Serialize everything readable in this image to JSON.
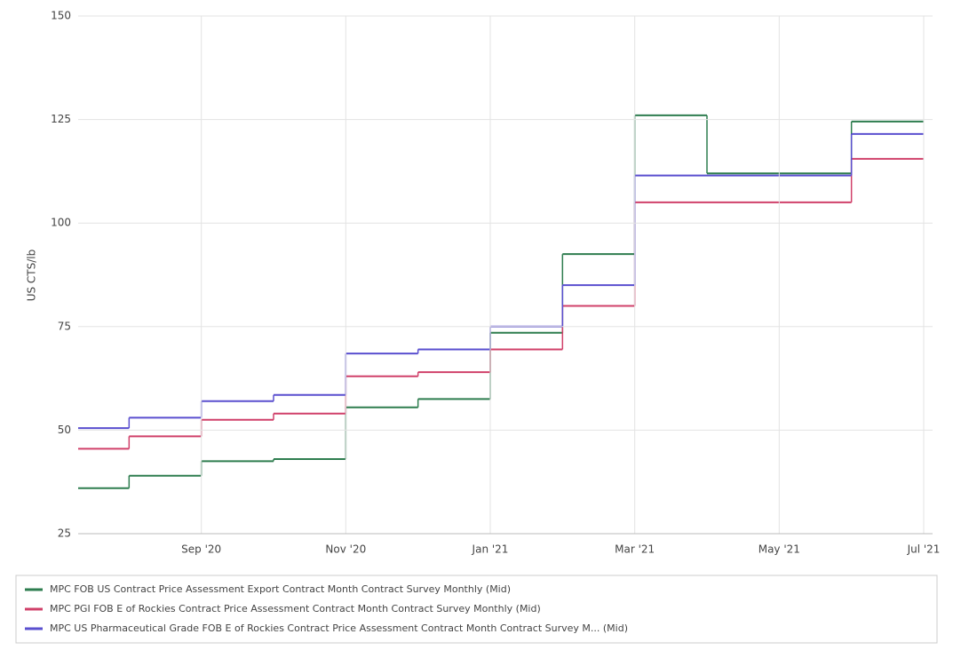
{
  "chart_data": {
    "type": "step",
    "y_label": "US CTS/lb",
    "x": [
      "2020-07",
      "2020-08",
      "2020-09",
      "2020-10",
      "2020-11",
      "2020-12",
      "2021-01",
      "2021-02",
      "2021-03",
      "2021-04",
      "2021-05",
      "2021-06"
    ],
    "xlim": [
      "2020-07",
      "2021-07"
    ],
    "xticks": [
      {
        "value": "2020-09",
        "label": "Sep '20"
      },
      {
        "value": "2020-11",
        "label": "Nov '20"
      },
      {
        "value": "2021-01",
        "label": "Jan '21"
      },
      {
        "value": "2021-03",
        "label": "Mar '21"
      },
      {
        "value": "2021-05",
        "label": "May '21"
      },
      {
        "value": "2021-07",
        "label": "Jul '21"
      }
    ],
    "ylim": [
      25,
      150
    ],
    "yticks": [
      25,
      50,
      75,
      100,
      125,
      150
    ],
    "grid": true,
    "legend": "bottom",
    "series": [
      {
        "name": "MPC FOB US Contract Price Assessment Export Contract Month Contract Survey Monthly (Mid)",
        "color": "#2e7d4f",
        "values": [
          36,
          39,
          42.5,
          43,
          55.5,
          57.5,
          73.5,
          92.5,
          126,
          112,
          112,
          124.5
        ]
      },
      {
        "name": "MPC PGI FOB E of Rockies Contract Price Assessment Contract Month Contract Survey Monthly (Mid)",
        "color": "#d0406a",
        "values": [
          45.5,
          48.5,
          52.5,
          54,
          63,
          64,
          69.5,
          80,
          105,
          105,
          105,
          115.5
        ]
      },
      {
        "name": "MPC US Pharmaceutical Grade FOB E of Rockies Contract Price Assessment Contract Month Contract Survey M... (Mid)",
        "color": "#5a4fcf",
        "values": [
          50.5,
          53,
          57,
          58.5,
          68.5,
          69.5,
          75,
          85,
          111.5,
          111.5,
          111.5,
          121.5
        ]
      }
    ]
  }
}
